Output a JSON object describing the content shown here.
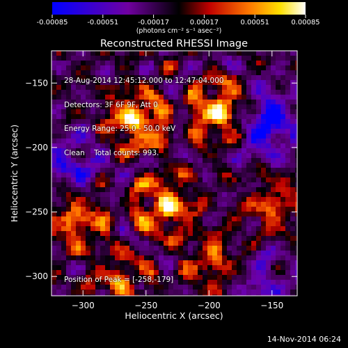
{
  "colorbar": {
    "ticks": [
      "-0.00085",
      "-0.00051",
      "-0.00017",
      "0.00017",
      "0.00051",
      "0.00085"
    ],
    "units": "(photons cm⁻² s⁻¹ asec⁻²)"
  },
  "chart_data": {
    "type": "heatmap",
    "title": "Reconstructed RHESSI Image",
    "xlabel": "Heliocentric X (arcsec)",
    "ylabel": "Heliocentric Y (arcsec)",
    "xlim": [
      -325,
      -130
    ],
    "ylim": [
      -315,
      -125
    ],
    "xticks": [
      -300,
      -250,
      -200,
      -150
    ],
    "yticks": [
      -150,
      -200,
      -250,
      -300
    ],
    "colorscale": {
      "min": -0.00085,
      "max": 0.00085,
      "colors": [
        "#0000ff",
        "#800080",
        "#000000",
        "#cc0000",
        "#ff8800",
        "#ffff00",
        "#ffffff"
      ]
    },
    "peak": {
      "x": -258,
      "y": -179
    },
    "sources": [
      {
        "x": -190,
        "y": -172,
        "intensity": 1.0
      },
      {
        "x": -258,
        "y": -179,
        "intensity": 0.9
      },
      {
        "x": -235,
        "y": -245,
        "intensity": 0.8
      },
      {
        "x": -305,
        "y": -255,
        "intensity": 0.7
      },
      {
        "x": -148,
        "y": -245,
        "intensity": 0.5
      },
      {
        "x": -195,
        "y": -290,
        "intensity": 0.55
      },
      {
        "x": -270,
        "y": -305,
        "intensity": 0.5
      }
    ],
    "negative_regions": [
      {
        "x": -155,
        "y": -180,
        "intensity": 0.8
      },
      {
        "x": -310,
        "y": -215,
        "intensity": 0.5
      },
      {
        "x": -160,
        "y": -305,
        "intensity": 0.4
      }
    ]
  },
  "info": {
    "line1": "28-Aug-2014 12:45:12.000 to 12:47:04.000",
    "line2": "Detectors: 3F 6F 9F, Att 0",
    "line3": "Energy Range: 25.0 - 50.0 keV",
    "line4": "Clean    Total counts: 993."
  },
  "peak_text": "Position of Peak = [-258,-179]",
  "footer_date": "14-Nov-2014 06:24"
}
